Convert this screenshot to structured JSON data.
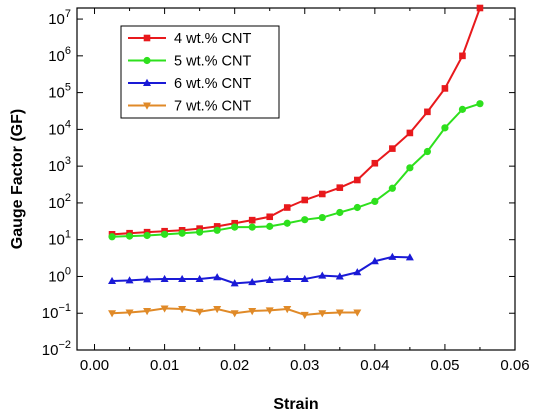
{
  "chart_data": {
    "type": "line",
    "xlabel": "Strain",
    "ylabel": "Gauge Factor (GF)",
    "xlim": [
      -0.0025,
      0.06
    ],
    "ylim": [
      0.01,
      20000000
    ],
    "y_scale": "log",
    "grid": false,
    "legend_position": "top-left",
    "x_ticks": [
      0.0,
      0.01,
      0.02,
      0.03,
      0.04,
      0.05,
      0.06
    ],
    "x_tick_labels": [
      "0.00",
      "0.01",
      "0.02",
      "0.03",
      "0.04",
      "0.05",
      "0.06"
    ],
    "y_ticks": [
      0.01,
      0.1,
      1,
      10,
      100,
      1000,
      10000,
      100000,
      1000000,
      10000000
    ],
    "y_tick_labels": [
      {
        "base": "10",
        "exp": "−2"
      },
      {
        "base": "10",
        "exp": "−1"
      },
      {
        "base": "10",
        "exp": "0"
      },
      {
        "base": "10",
        "exp": "1"
      },
      {
        "base": "10",
        "exp": "2"
      },
      {
        "base": "10",
        "exp": "3"
      },
      {
        "base": "10",
        "exp": "4"
      },
      {
        "base": "10",
        "exp": "5"
      },
      {
        "base": "10",
        "exp": "6"
      },
      {
        "base": "10",
        "exp": "7"
      }
    ],
    "series": [
      {
        "name": "4 wt.% CNT",
        "color": "#e8191c",
        "marker": "square",
        "points": [
          [
            0.0025,
            14
          ],
          [
            0.005,
            15
          ],
          [
            0.0075,
            16
          ],
          [
            0.01,
            17
          ],
          [
            0.0125,
            18
          ],
          [
            0.015,
            20
          ],
          [
            0.0175,
            23
          ],
          [
            0.02,
            28
          ],
          [
            0.0225,
            34
          ],
          [
            0.025,
            42
          ],
          [
            0.0275,
            75
          ],
          [
            0.03,
            120
          ],
          [
            0.0325,
            175
          ],
          [
            0.035,
            260
          ],
          [
            0.0375,
            420
          ],
          [
            0.04,
            1200
          ],
          [
            0.0425,
            3000
          ],
          [
            0.045,
            8000
          ],
          [
            0.0475,
            30000
          ],
          [
            0.05,
            130000
          ],
          [
            0.0525,
            1000000
          ],
          [
            0.055,
            20000000
          ]
        ]
      },
      {
        "name": "5 wt.% CNT",
        "color": "#2ee01d",
        "marker": "circle",
        "points": [
          [
            0.0025,
            12
          ],
          [
            0.005,
            12.5
          ],
          [
            0.0075,
            13
          ],
          [
            0.01,
            14
          ],
          [
            0.0125,
            15
          ],
          [
            0.015,
            16
          ],
          [
            0.0175,
            18
          ],
          [
            0.02,
            22
          ],
          [
            0.0225,
            22
          ],
          [
            0.025,
            23
          ],
          [
            0.0275,
            28
          ],
          [
            0.03,
            35
          ],
          [
            0.0325,
            40
          ],
          [
            0.035,
            55
          ],
          [
            0.0375,
            75
          ],
          [
            0.04,
            110
          ],
          [
            0.0425,
            250
          ],
          [
            0.045,
            900
          ],
          [
            0.0475,
            2500
          ],
          [
            0.05,
            11000
          ],
          [
            0.0525,
            35000
          ],
          [
            0.055,
            50000
          ]
        ]
      },
      {
        "name": "6 wt.% CNT",
        "color": "#1a1ad6",
        "marker": "triangle-up",
        "points": [
          [
            0.0025,
            0.75
          ],
          [
            0.005,
            0.78
          ],
          [
            0.0075,
            0.83
          ],
          [
            0.01,
            0.85
          ],
          [
            0.0125,
            0.85
          ],
          [
            0.015,
            0.85
          ],
          [
            0.0175,
            0.95
          ],
          [
            0.02,
            0.65
          ],
          [
            0.0225,
            0.7
          ],
          [
            0.025,
            0.8
          ],
          [
            0.0275,
            0.85
          ],
          [
            0.03,
            0.85
          ],
          [
            0.0325,
            1.05
          ],
          [
            0.035,
            1.0
          ],
          [
            0.0375,
            1.3
          ],
          [
            0.04,
            2.6
          ],
          [
            0.0425,
            3.4
          ],
          [
            0.045,
            3.3
          ]
        ]
      },
      {
        "name": "7 wt.% CNT",
        "color": "#e08a28",
        "marker": "triangle-down",
        "points": [
          [
            0.0025,
            0.1
          ],
          [
            0.005,
            0.105
          ],
          [
            0.0075,
            0.115
          ],
          [
            0.01,
            0.135
          ],
          [
            0.0125,
            0.13
          ],
          [
            0.015,
            0.11
          ],
          [
            0.0175,
            0.13
          ],
          [
            0.02,
            0.1
          ],
          [
            0.0225,
            0.115
          ],
          [
            0.025,
            0.12
          ],
          [
            0.0275,
            0.13
          ],
          [
            0.03,
            0.09
          ],
          [
            0.0325,
            0.1
          ],
          [
            0.035,
            0.105
          ],
          [
            0.0375,
            0.105
          ]
        ]
      }
    ]
  }
}
